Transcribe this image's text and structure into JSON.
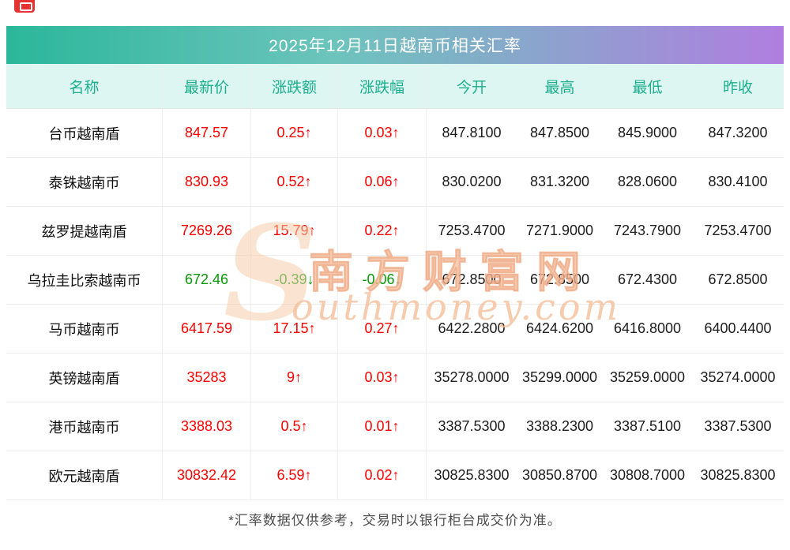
{
  "page": {
    "title": "2025年12月11日越南币相关汇率",
    "footnote": "*汇率数据仅供参考，交易时以银行柜台成交价为准。"
  },
  "watermark": {
    "logo_letter": "S",
    "cn": "南方财富网",
    "en": "outhmoney.com"
  },
  "colors": {
    "title_gradient_left": "#2bb79a",
    "title_gradient_right": "#b07ee0",
    "header_bg": "#ddf6f1",
    "header_text": "#1db08e",
    "up": "#fe0000",
    "down": "#089b08",
    "watermark": "#f5c3a4"
  },
  "table": {
    "columns": [
      "名称",
      "最新价",
      "涨跌额",
      "涨跌幅",
      "今开",
      "最高",
      "最低",
      "昨收"
    ],
    "rows": [
      {
        "name": "台币越南盾",
        "last": "847.57",
        "change": "0.25↑",
        "pct": "0.03↑",
        "open": "847.8100",
        "high": "847.8500",
        "low": "845.9000",
        "prev": "847.3200",
        "dir": "up"
      },
      {
        "name": "泰铢越南币",
        "last": "830.93",
        "change": "0.52↑",
        "pct": "0.06↑",
        "open": "830.0200",
        "high": "831.3200",
        "low": "828.0600",
        "prev": "830.4100",
        "dir": "up"
      },
      {
        "name": "兹罗提越南盾",
        "last": "7269.26",
        "change": "15.79↑",
        "pct": "0.22↑",
        "open": "7253.4700",
        "high": "7271.9000",
        "low": "7243.7900",
        "prev": "7253.4700",
        "dir": "up"
      },
      {
        "name": "乌拉圭比索越南币",
        "last": "672.46",
        "change": "-0.39↓",
        "pct": "-0.06↓",
        "open": "672.8500",
        "high": "672.8500",
        "low": "672.4300",
        "prev": "672.8500",
        "dir": "down"
      },
      {
        "name": "马币越南币",
        "last": "6417.59",
        "change": "17.15↑",
        "pct": "0.27↑",
        "open": "6422.2800",
        "high": "6424.6200",
        "low": "6416.8000",
        "prev": "6400.4400",
        "dir": "up"
      },
      {
        "name": "英镑越南盾",
        "last": "35283",
        "change": "9↑",
        "pct": "0.03↑",
        "open": "35278.0000",
        "high": "35299.0000",
        "low": "35259.0000",
        "prev": "35274.0000",
        "dir": "up"
      },
      {
        "name": "港币越南币",
        "last": "3388.03",
        "change": "0.5↑",
        "pct": "0.01↑",
        "open": "3387.5300",
        "high": "3388.2300",
        "low": "3387.5100",
        "prev": "3387.5300",
        "dir": "up"
      },
      {
        "name": "欧元越南盾",
        "last": "30832.42",
        "change": "6.59↑",
        "pct": "0.02↑",
        "open": "30825.8300",
        "high": "30850.8700",
        "low": "30808.7000",
        "prev": "30825.8300",
        "dir": "up"
      }
    ]
  }
}
